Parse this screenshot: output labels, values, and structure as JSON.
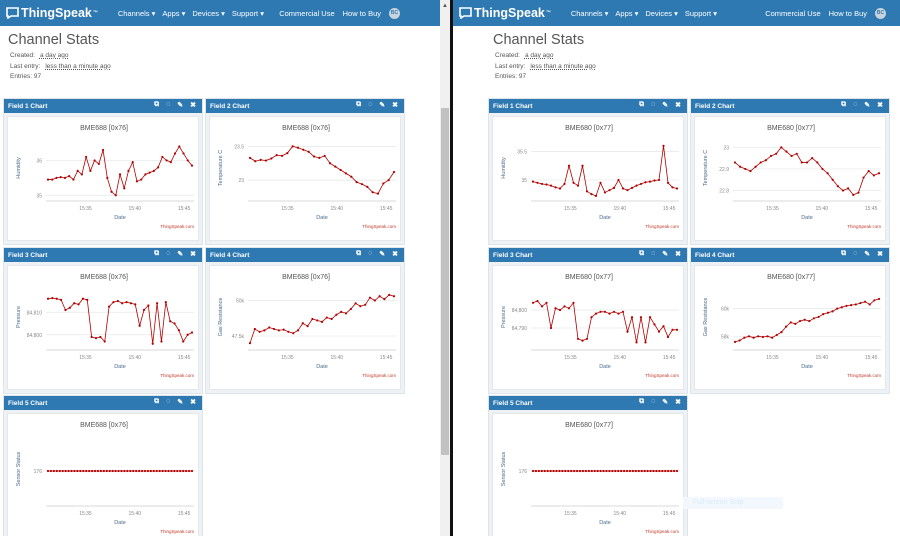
{
  "colors": {
    "nav": "#2f79b3",
    "line": "#b30000",
    "grid": "#e6e6e6"
  },
  "windows": [
    {
      "nav": {
        "brand": "ThingSpeak",
        "tm": "™",
        "menus": [
          "Channels ▾",
          "Apps ▾",
          "Devices ▾",
          "Support ▾"
        ],
        "links": [
          "Commercial Use",
          "How to Buy"
        ],
        "avatar": "BC"
      },
      "stats": {
        "title": "Channel Stats",
        "created_label": "Created:",
        "created": "a day ago",
        "last_label": "Last entry:",
        "last": "less than a minute ago",
        "entries": "Entries: 97"
      },
      "fields": [
        {
          "header": "Field 1 Chart",
          "chart_title": "BME688 [0x76]",
          "ylabel": "Humidity",
          "xlabel": "Date",
          "credit": "ThingSpeak.com",
          "yticks": [
            {
              "v": 35,
              "label": "35"
            },
            {
              "v": 36,
              "label": "36"
            }
          ],
          "ylim": [
            34.95,
            36.5
          ],
          "values": [
            35.45,
            35.45,
            35.5,
            35.52,
            35.5,
            35.55,
            35.45,
            35.7,
            35.6,
            36.1,
            35.7,
            36.0,
            35.9,
            36.3,
            35.5,
            35.1,
            35.0,
            35.6,
            35.2,
            35.7,
            35.95,
            35.4,
            35.45,
            35.6,
            35.65,
            35.7,
            35.8,
            36.1,
            36.0,
            35.95,
            36.2,
            36.4,
            36.2,
            36.0,
            35.85
          ]
        },
        {
          "header": "Field 2 Chart",
          "chart_title": "BME688 [0x76]",
          "ylabel": "Temperature C",
          "xlabel": "Date",
          "credit": "ThingSpeak.com",
          "yticks": [
            {
              "v": 23,
              "label": "23"
            },
            {
              "v": 23.5,
              "label": "23.5"
            }
          ],
          "ylim": [
            22.75,
            23.55
          ],
          "values": [
            23.33,
            23.28,
            23.3,
            23.29,
            23.32,
            23.37,
            23.36,
            23.4,
            23.5,
            23.48,
            23.45,
            23.42,
            23.35,
            23.33,
            23.36,
            23.25,
            23.2,
            23.15,
            23.1,
            23.05,
            22.97,
            22.94,
            22.9,
            22.82,
            22.8,
            22.95,
            23.0,
            23.12
          ]
        },
        {
          "header": "Field 3 Chart",
          "chart_title": "BME688 [0x76]",
          "ylabel": "Pressure",
          "xlabel": "Date",
          "credit": "ThingSpeak.com",
          "yticks": [
            {
              "v": 84800,
              "label": "84,800"
            },
            {
              "v": 84810,
              "label": "84,810"
            }
          ],
          "ylim": [
            84795,
            84819
          ],
          "values": [
            84816,
            84816.3,
            84816,
            84815.5,
            84811,
            84812,
            84814,
            84813.5,
            84816,
            84815.5,
            84799,
            84798.5,
            84799,
            84797,
            84812.5,
            84814.5,
            84815,
            84814,
            84814.5,
            84814,
            84813.5,
            84804,
            84811,
            84813,
            84796,
            84814,
            84797,
            84814.5,
            84806,
            84805,
            84802,
            84797,
            84800,
            84801
          ]
        },
        {
          "header": "Field 4 Chart",
          "chart_title": "BME688 [0x76]",
          "ylabel": "Gas Resistance",
          "xlabel": "Date",
          "credit": "ThingSpeak.com",
          "yticks": [
            {
              "v": 47500,
              "label": "47.5k"
            },
            {
              "v": 50000,
              "label": "50k"
            }
          ],
          "ylim": [
            46800,
            50600
          ],
          "values": [
            47000,
            48000,
            47800,
            47900,
            48100,
            48000,
            47900,
            47950,
            47800,
            47700,
            47900,
            48400,
            48200,
            48700,
            48600,
            48500,
            48800,
            48700,
            49000,
            49200,
            49100,
            49400,
            49800,
            49600,
            49700,
            50200,
            50000,
            50300,
            50100,
            50400,
            50300
          ]
        },
        {
          "header": "Field 5 Chart",
          "chart_title": "BME688 [0x76]",
          "ylabel": "Sensor Status",
          "xlabel": "Date",
          "credit": "ThingSpeak.com",
          "yticks": [
            {
              "v": 176,
              "label": "176"
            }
          ],
          "ylim": [
            175,
            177
          ],
          "values": [
            176,
            176,
            176,
            176,
            176,
            176,
            176,
            176,
            176,
            176,
            176,
            176,
            176,
            176,
            176,
            176,
            176,
            176,
            176,
            176,
            176,
            176,
            176,
            176,
            176,
            176,
            176,
            176,
            176,
            176,
            176,
            176,
            176,
            176,
            176,
            176,
            176,
            176,
            176,
            176,
            176,
            176,
            176,
            176,
            176,
            176,
            176,
            176,
            176,
            176
          ]
        }
      ]
    },
    {
      "nav": {
        "brand": "ThingSpeak",
        "tm": "™",
        "menus": [
          "Channels ▾",
          "Apps ▾",
          "Devices ▾",
          "Support ▾"
        ],
        "links": [
          "Commercial Use",
          "How to Buy"
        ],
        "avatar": "BC"
      },
      "stats": {
        "title": "Channel Stats",
        "created_label": "Created:",
        "created": "a day ago",
        "last_label": "Last entry:",
        "last": "less than a minute ago",
        "entries": "Entries: 97"
      },
      "fields": [
        {
          "header": "Field 1 Chart",
          "chart_title": "BME680 [0x77]",
          "ylabel": "Humidity",
          "xlabel": "Date",
          "credit": "ThingSpeak.com",
          "yticks": [
            {
              "v": 35,
              "label": "35"
            },
            {
              "v": 35.5,
              "label": "35.5"
            }
          ],
          "ylim": [
            34.7,
            35.65
          ],
          "values": [
            34.97,
            34.95,
            34.93,
            34.92,
            34.9,
            34.87,
            34.85,
            34.93,
            35.25,
            34.95,
            34.9,
            35.25,
            34.8,
            34.75,
            34.72,
            34.95,
            34.78,
            34.82,
            34.86,
            35.0,
            34.85,
            34.82,
            34.86,
            34.9,
            34.93,
            34.96,
            34.97,
            34.99,
            35.0,
            35.6,
            34.95,
            34.87,
            34.85
          ]
        },
        {
          "header": "Field 2 Chart",
          "chart_title": "BME680 [0x77]",
          "ylabel": "Temperature C",
          "xlabel": "Date",
          "credit": "ThingSpeak.com",
          "yticks": [
            {
              "v": 22.8,
              "label": "22.8"
            },
            {
              "v": 22.9,
              "label": "22.9"
            },
            {
              "v": 23,
              "label": "23"
            }
          ],
          "ylim": [
            22.77,
            23.02
          ],
          "values": [
            22.93,
            22.91,
            22.9,
            22.89,
            22.91,
            22.93,
            22.94,
            22.96,
            22.97,
            23.0,
            22.98,
            22.96,
            22.97,
            22.93,
            22.93,
            22.95,
            22.93,
            22.9,
            22.88,
            22.85,
            22.82,
            22.8,
            22.81,
            22.78,
            22.79,
            22.86,
            22.89,
            22.87,
            22.88
          ]
        },
        {
          "header": "Field 3 Chart",
          "chart_title": "BME680 [0x77]",
          "ylabel": "Pressure",
          "xlabel": "Date",
          "credit": "ThingSpeak.com",
          "yticks": [
            {
              "v": 84790,
              "label": "84,790"
            },
            {
              "v": 84800,
              "label": "84,800"
            }
          ],
          "ylim": [
            84780,
            84810
          ],
          "values": [
            84804,
            84805,
            84802,
            84804,
            84790,
            84801,
            84800,
            84802,
            84801,
            84804,
            84784,
            84783,
            84784,
            84796,
            84798,
            84799,
            84799,
            84798,
            84799,
            84798,
            84799,
            84788,
            84796,
            84782,
            84796,
            84782,
            84796,
            84792,
            84788,
            84791,
            84785,
            84789,
            84789
          ]
        },
        {
          "header": "Field 4 Chart",
          "chart_title": "BME680 [0x77]",
          "ylabel": "Gas Resistance",
          "xlabel": "Date",
          "credit": "ThingSpeak.com",
          "yticks": [
            {
              "v": 58000,
              "label": "58k"
            },
            {
              "v": 60000,
              "label": "60k"
            }
          ],
          "ylim": [
            57300,
            61200
          ],
          "values": [
            57600,
            57700,
            57900,
            58000,
            57900,
            58000,
            57950,
            58000,
            57900,
            58100,
            58300,
            58700,
            59000,
            58900,
            59100,
            59200,
            59100,
            59300,
            59400,
            59600,
            59700,
            59800,
            60000,
            60100,
            60200,
            60250,
            60300,
            60400,
            60500,
            60300,
            60600,
            60700
          ]
        },
        {
          "header": "Field 5 Chart",
          "chart_title": "BME680 [0x77]",
          "ylabel": "Sensor Status",
          "xlabel": "Date",
          "credit": "ThingSpeak.com",
          "yticks": [
            {
              "v": 176,
              "label": "176"
            }
          ],
          "ylim": [
            175,
            177
          ],
          "values": [
            176,
            176,
            176,
            176,
            176,
            176,
            176,
            176,
            176,
            176,
            176,
            176,
            176,
            176,
            176,
            176,
            176,
            176,
            176,
            176,
            176,
            176,
            176,
            176,
            176,
            176,
            176,
            176,
            176,
            176,
            176,
            176,
            176,
            176,
            176,
            176,
            176,
            176,
            176,
            176,
            176,
            176,
            176,
            176,
            176,
            176,
            176,
            176,
            176,
            176
          ]
        }
      ]
    }
  ],
  "xticks": [
    "15:35",
    "15:40",
    "15:45"
  ],
  "xtick_positions_time": [
    35,
    40,
    45
  ],
  "xrange_minutes": [
    31,
    46
  ],
  "tooltip": "Full-screen Snip"
}
